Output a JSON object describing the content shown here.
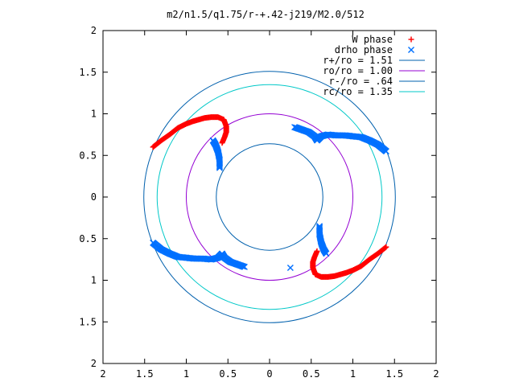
{
  "chart_data": {
    "type": "scatter",
    "title": "m2/n1.5/q1.75/r-+.42-j219/M2.0/512",
    "xlim": [
      -2,
      2
    ],
    "ylim": [
      -2,
      2
    ],
    "grid": false,
    "legend_position": "top-right",
    "x_ticks": [
      -2,
      -1.5,
      -1,
      -0.5,
      0,
      0.5,
      1,
      1.5,
      2
    ],
    "y_ticks": [
      -2,
      -1.5,
      -1,
      -0.5,
      0,
      0.5,
      1,
      1.5,
      2
    ],
    "x_tick_labels": [
      "2",
      "1.5",
      "1",
      "0.5",
      "0",
      "0.5",
      "1",
      "1.5",
      "2"
    ],
    "y_tick_labels": [
      "2",
      "1.5",
      "1",
      "0.5",
      "0",
      "0.5",
      "1",
      "1.5",
      "2"
    ],
    "series": [
      {
        "name": "W phase",
        "marker": "plus",
        "color": "#ff0000",
        "x": [
          -1.4,
          -1.3,
          -1.2,
          -1.1,
          -1.0,
          -0.92,
          -0.85,
          -0.78,
          -0.7,
          -0.62,
          -0.55,
          -0.52,
          -0.52,
          -0.54,
          -0.57,
          1.4,
          1.3,
          1.2,
          1.1,
          1.0,
          0.92,
          0.85,
          0.78,
          0.7,
          0.62,
          0.55,
          0.52,
          0.52,
          0.54,
          0.57
        ],
        "y": [
          0.6,
          0.68,
          0.75,
          0.83,
          0.88,
          0.91,
          0.93,
          0.95,
          0.96,
          0.96,
          0.93,
          0.85,
          0.78,
          0.72,
          0.65,
          -0.6,
          -0.68,
          -0.75,
          -0.83,
          -0.88,
          -0.91,
          -0.93,
          -0.95,
          -0.96,
          -0.96,
          -0.93,
          -0.85,
          -0.78,
          -0.72,
          -0.65
        ]
      },
      {
        "name": "drho phase",
        "marker": "x",
        "color": "#0070ff",
        "x": [
          1.4,
          1.3,
          1.2,
          1.1,
          1.0,
          0.9,
          0.8,
          0.7,
          0.62,
          0.57,
          0.54,
          0.47,
          0.3,
          -0.6,
          -0.6,
          -0.62,
          -0.65,
          -0.68,
          -1.4,
          -1.3,
          -1.2,
          -1.1,
          -1.0,
          -0.9,
          -0.8,
          -0.7,
          -0.62,
          -0.57,
          -0.54,
          -0.47,
          -0.3,
          0.6,
          0.6,
          0.62,
          0.65,
          0.68,
          0.25
        ],
        "y": [
          0.55,
          0.63,
          0.68,
          0.72,
          0.73,
          0.74,
          0.74,
          0.75,
          0.73,
          0.68,
          0.73,
          0.78,
          0.84,
          0.35,
          0.45,
          0.55,
          0.63,
          0.68,
          -0.55,
          -0.63,
          -0.68,
          -0.72,
          -0.73,
          -0.74,
          -0.74,
          -0.75,
          -0.73,
          -0.68,
          -0.73,
          -0.78,
          -0.84,
          -0.35,
          -0.45,
          -0.55,
          -0.63,
          -0.68,
          -0.85
        ]
      },
      {
        "name": "r+/ro = 1.51",
        "type": "circle",
        "radius": 1.51,
        "color": "#0060ad"
      },
      {
        "name": "ro/ro = 1.00",
        "type": "circle",
        "radius": 1.0,
        "color": "#9400d3"
      },
      {
        "name": "r-/ro = .64",
        "type": "circle",
        "radius": 0.64,
        "color": "#0060ad"
      },
      {
        "name": "rc/ro = 1.35",
        "type": "circle",
        "radius": 1.35,
        "color": "#00c8c8"
      }
    ]
  }
}
